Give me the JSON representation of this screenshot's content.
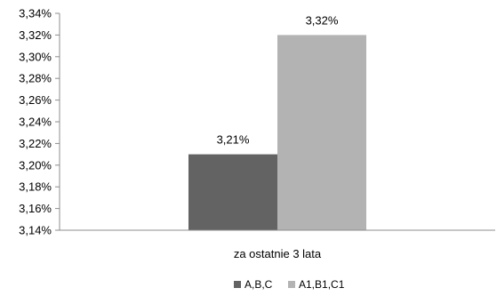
{
  "chart_data": {
    "type": "bar",
    "categories": [
      "za ostatnie 3 lata"
    ],
    "series": [
      {
        "name": "A,B,C",
        "values": [
          3.21
        ],
        "label": "3,21%",
        "color": "#636363"
      },
      {
        "name": "A1,B1,C1",
        "values": [
          3.32
        ],
        "label": "3,32%",
        "color": "#b3b3b3"
      }
    ],
    "ylim": [
      3.14,
      3.34
    ],
    "yticks": [
      3.14,
      3.16,
      3.18,
      3.2,
      3.22,
      3.24,
      3.26,
      3.28,
      3.3,
      3.32,
      3.34
    ],
    "ytick_labels": [
      "3,14%",
      "3,16%",
      "3,18%",
      "3,20%",
      "3,22%",
      "3,24%",
      "3,26%",
      "3,28%",
      "3,30%",
      "3,32%",
      "3,34%"
    ],
    "grid": false,
    "legend": "bottom",
    "title": "",
    "xlabel": "",
    "ylabel": ""
  }
}
